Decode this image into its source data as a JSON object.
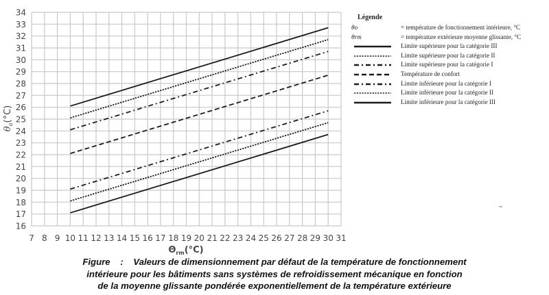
{
  "chart_data": {
    "type": "line",
    "title": "",
    "xlabel": "Θrm (°C)",
    "ylabel": "θo (°C)",
    "xlim": [
      7,
      31
    ],
    "ylim": [
      16,
      34
    ],
    "x_ticks": [
      7,
      8,
      9,
      10,
      11,
      12,
      13,
      14,
      15,
      16,
      17,
      18,
      19,
      20,
      21,
      22,
      23,
      24,
      25,
      26,
      27,
      28,
      29,
      30,
      31
    ],
    "y_ticks": [
      16,
      17,
      18,
      19,
      20,
      21,
      22,
      23,
      24,
      25,
      26,
      27,
      28,
      29,
      30,
      31,
      32,
      33,
      34
    ],
    "grid": true,
    "legend_position": "right",
    "x": [
      10,
      30
    ],
    "series": [
      {
        "name": "Limite supérieure pour la catégorie III",
        "style": "solid",
        "values": [
          26.1,
          32.7
        ]
      },
      {
        "name": "Limite supérieure pour la catégorie II",
        "style": "dotted",
        "values": [
          25.1,
          31.7
        ]
      },
      {
        "name": "Limite supérieure pour la catégorie I",
        "style": "dashdot",
        "values": [
          24.1,
          30.7
        ]
      },
      {
        "name": "Température de confort",
        "style": "dashed",
        "values": [
          22.1,
          28.7
        ]
      },
      {
        "name": "Limite inférieure pour la catégorie I",
        "style": "dashdot",
        "values": [
          19.1,
          25.7
        ]
      },
      {
        "name": "Limite inférieure pour la catégorie II",
        "style": "dotted",
        "values": [
          18.1,
          24.7
        ]
      },
      {
        "name": "Limite inférieure pour la catégorie III",
        "style": "solid",
        "values": [
          17.1,
          23.7
        ]
      }
    ]
  },
  "axes": {
    "y_label_main": "θ",
    "y_label_sub": "o",
    "y_label_unit": "(°C)",
    "x_label_main": "Θ",
    "x_label_sub": "rm",
    "x_label_unit": "(°C)"
  },
  "legend": {
    "title": "Légende",
    "symbols": [
      {
        "symbol": "θo",
        "desc": "= température de fonctionnement intérieure, °C"
      },
      {
        "symbol": "θrm",
        "desc": "= température extérieure moyenne glissante, °C"
      }
    ],
    "lines": [
      {
        "style": "solid",
        "label": "Limite supérieure pour la catégorie III"
      },
      {
        "style": "dotted",
        "label": "Limite supérieure pour la catégorie II"
      },
      {
        "style": "dashdot",
        "label": "Limite supérieure pour la catégorie I"
      },
      {
        "style": "dashed",
        "label": "Température de confort"
      },
      {
        "style": "dashdot",
        "label": "Limite inférieure pour la catégorie I"
      },
      {
        "style": "dotted",
        "label": "Limite inférieure pour la catégorie II"
      },
      {
        "style": "solid",
        "label": "Limite inférieure pour la catégorie III"
      }
    ]
  },
  "caption": {
    "line1": "Figure    :    Valeurs de dimensionnement par défaut de la température de fonctionnement",
    "line2": "intérieure pour les bâtiments sans systèmes de refroidissement mécanique en fonction",
    "line3": "de la moyenne glissante pondérée exponentiellement de la température extérieure"
  },
  "colors": {
    "grid": "#c8c8c8",
    "line": "#1a1a1a",
    "tick_text": "#444444"
  }
}
